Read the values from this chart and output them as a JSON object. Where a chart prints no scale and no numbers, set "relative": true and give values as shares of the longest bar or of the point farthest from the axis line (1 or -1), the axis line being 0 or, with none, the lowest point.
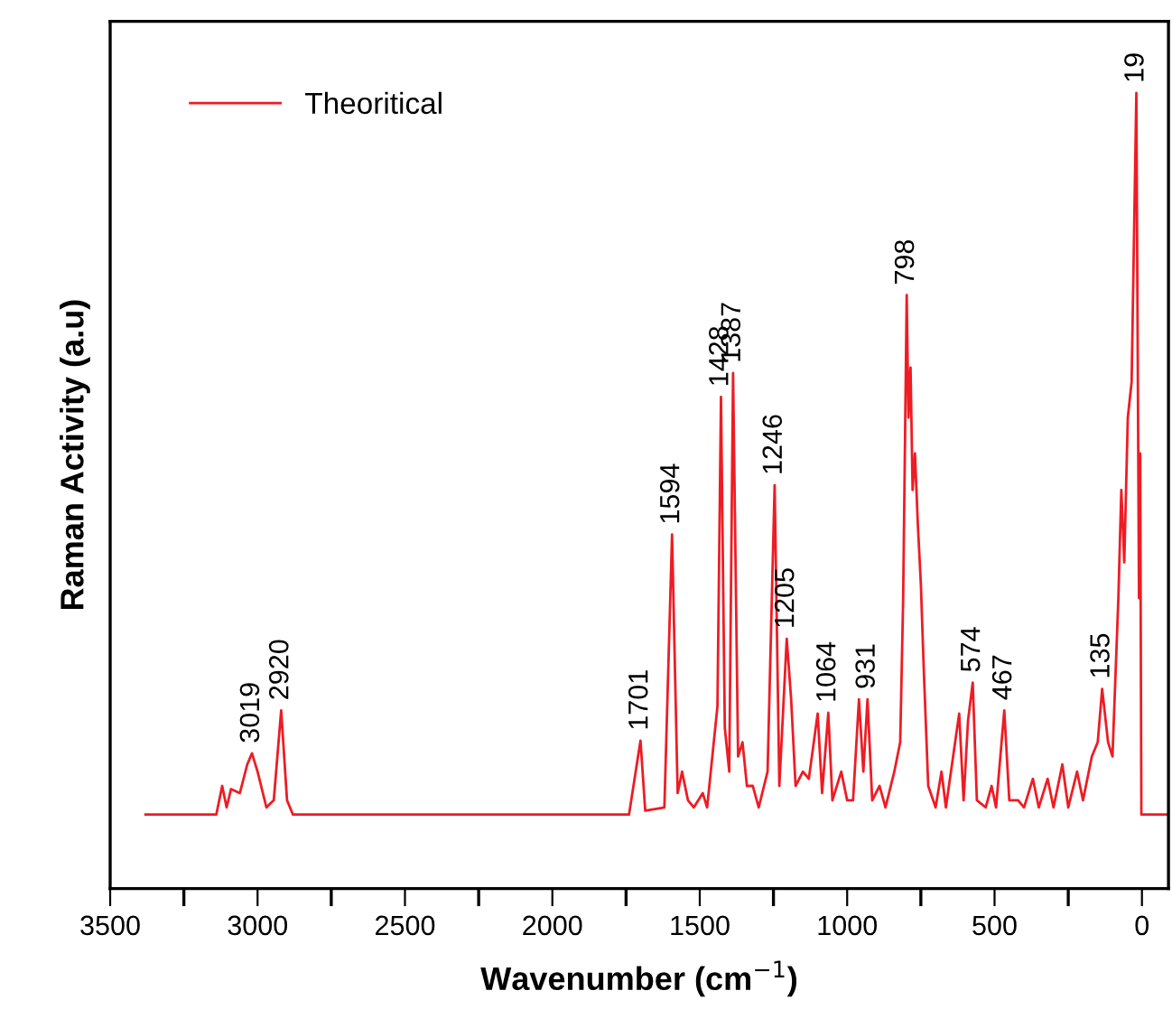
{
  "chart_data": {
    "type": "line",
    "relative": true,
    "xlabel": "Wavenumber (cm$^{−1}$)",
    "ylabel": "Raman Activity (a.u)",
    "xlim": [
      3500,
      -90
    ],
    "xticks": [
      3500,
      {
        "value": 3250,
        "label": null
      },
      3000,
      {
        "value": 2750,
        "label": null
      },
      2500,
      {
        "value": 2250,
        "label": null
      },
      2000,
      {
        "value": 1750,
        "label": null
      },
      1500,
      {
        "value": 1250,
        "label": null
      },
      1000,
      {
        "value": 750,
        "label": null
      },
      500,
      {
        "value": 250,
        "label": null
      },
      0
    ],
    "tick_labels": "x",
    "legend": "top left",
    "grid": false,
    "marker": "none",
    "line_style": "solid",
    "series": [
      {
        "name": "Theoritical",
        "color": "#ee1c24",
        "x": [
          3380,
          3140,
          3120,
          3105,
          3090,
          3060,
          3035,
          3019,
          3000,
          2970,
          2945,
          2920,
          2900,
          2880,
          1740,
          1701,
          1685,
          1620,
          1594,
          1575,
          1560,
          1540,
          1520,
          1490,
          1475,
          1440,
          1428,
          1415,
          1400,
          1387,
          1370,
          1355,
          1340,
          1320,
          1300,
          1270,
          1246,
          1230,
          1205,
          1190,
          1175,
          1150,
          1130,
          1100,
          1085,
          1064,
          1050,
          1020,
          1000,
          980,
          960,
          945,
          931,
          915,
          890,
          870,
          840,
          820,
          810,
          798,
          792,
          785,
          778,
          770,
          760,
          750,
          740,
          725,
          700,
          680,
          665,
          620,
          605,
          590,
          574,
          560,
          530,
          510,
          495,
          467,
          450,
          420,
          400,
          370,
          350,
          320,
          300,
          270,
          250,
          220,
          200,
          170,
          150,
          135,
          115,
          100,
          80,
          70,
          60,
          48,
          35,
          19,
          10,
          6,
          2,
          -90
        ],
        "values": [
          0.093,
          0.093,
          0.129,
          0.102,
          0.125,
          0.12,
          0.156,
          0.17,
          0.147,
          0.102,
          0.111,
          0.224,
          0.111,
          0.093,
          0.093,
          0.186,
          0.098,
          0.102,
          0.445,
          0.12,
          0.147,
          0.111,
          0.102,
          0.12,
          0.102,
          0.229,
          0.618,
          0.202,
          0.147,
          0.648,
          0.166,
          0.184,
          0.129,
          0.129,
          0.102,
          0.147,
          0.507,
          0.129,
          0.314,
          0.238,
          0.129,
          0.147,
          0.138,
          0.22,
          0.12,
          0.221,
          0.111,
          0.147,
          0.111,
          0.111,
          0.238,
          0.147,
          0.238,
          0.111,
          0.129,
          0.102,
          0.147,
          0.184,
          0.365,
          0.746,
          0.592,
          0.655,
          0.501,
          0.547,
          0.456,
          0.383,
          0.274,
          0.129,
          0.102,
          0.147,
          0.102,
          0.22,
          0.111,
          0.211,
          0.259,
          0.111,
          0.102,
          0.129,
          0.102,
          0.224,
          0.111,
          0.111,
          0.102,
          0.138,
          0.102,
          0.138,
          0.102,
          0.156,
          0.102,
          0.147,
          0.111,
          0.166,
          0.184,
          0.251,
          0.184,
          0.166,
          0.365,
          0.501,
          0.41,
          0.592,
          0.637,
          1.0,
          0.365,
          0.547,
          0.093,
          0.093
        ]
      }
    ],
    "annotations": [
      {
        "text": "3019",
        "x": 3019,
        "y": 0.17
      },
      {
        "text": "2920",
        "x": 2920,
        "y": 0.224
      },
      {
        "text": "1701",
        "x": 1701,
        "y": 0.186
      },
      {
        "text": "1594",
        "x": 1594,
        "y": 0.445
      },
      {
        "text": "1428",
        "x": 1428,
        "y": 0.618
      },
      {
        "text": "1387",
        "x": 1387,
        "y": 0.648
      },
      {
        "text": "1246",
        "x": 1246,
        "y": 0.507
      },
      {
        "text": "1205",
        "x": 1205,
        "y": 0.314
      },
      {
        "text": "1064",
        "x": 1064,
        "y": 0.221
      },
      {
        "text": "931",
        "x": 931,
        "y": 0.238
      },
      {
        "text": "798",
        "x": 798,
        "y": 0.746
      },
      {
        "text": "574",
        "x": 574,
        "y": 0.259
      },
      {
        "text": "467",
        "x": 467,
        "y": 0.224
      },
      {
        "text": "135",
        "x": 135,
        "y": 0.251
      },
      {
        "text": "19",
        "x": 19,
        "y": 1.0
      }
    ]
  }
}
